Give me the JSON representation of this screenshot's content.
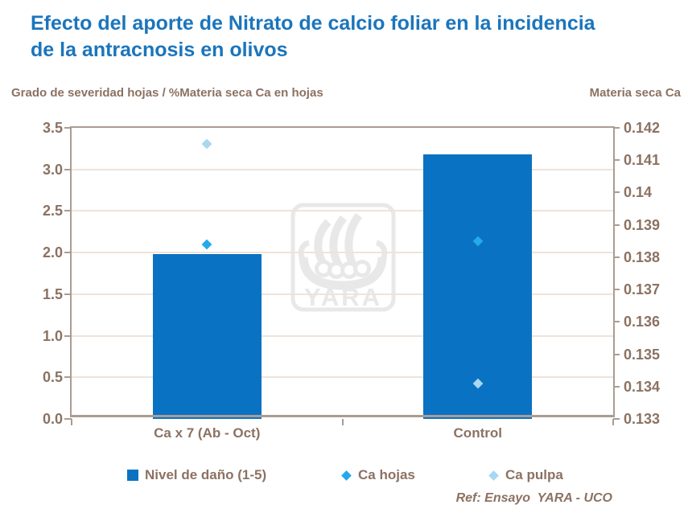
{
  "title": {
    "line1": "Efecto del aporte de Nitrato de calcio foliar en la incidencia",
    "line2": "de la antracnosis en olivos"
  },
  "axis_headers": {
    "left": "Grado de severidad hojas / %Materia seca Ca en hojas",
    "right": "Materia seca Ca"
  },
  "footer": {
    "ref": "Ref: Ensayo  YARA - UCO"
  },
  "watermark": {
    "text": "YARA",
    "icon": "yara-viking-ship-logo"
  },
  "legend": [
    {
      "label": "Nivel de daño (1-5)",
      "marker": "square",
      "color": "#0A72C2"
    },
    {
      "label": "Ca hojas",
      "marker": "diamond",
      "color": "#25A9E9"
    },
    {
      "label": "Ca pulpa",
      "marker": "diamond",
      "color": "#A8D7F2"
    }
  ],
  "colors": {
    "title": "#1B75BC",
    "text_brown": "#8B7262",
    "bar_blue": "#0A72C2",
    "ca_hojas_blue": "#25A9E9",
    "ca_pulpa_blue": "#A8D7F2",
    "gridline": "#EFE3DA",
    "plot_border": "#AB9C91",
    "watermark_gray": "#E8E8E8"
  },
  "chart_data": {
    "type": "bar",
    "subtype": "combo-bar-scatter-two-axes",
    "title": "Efecto del aporte de Nitrato de calcio foliar en la incidencia de la antracnosis en olivos",
    "categories": [
      "Ca x 7 (Ab - Oct)",
      "Control"
    ],
    "series": [
      {
        "name": "Nivel de daño (1-5)",
        "type": "bar",
        "axis": "left",
        "values": [
          1.98,
          3.18
        ],
        "color": "#0A72C2",
        "marker": "square"
      },
      {
        "name": "Ca hojas",
        "type": "scatter",
        "axis": "right",
        "values": [
          0.1384,
          0.1385
        ],
        "color": "#25A9E9",
        "marker": "diamond"
      },
      {
        "name": "Ca pulpa",
        "type": "scatter",
        "axis": "right",
        "values": [
          0.1415,
          0.1341
        ],
        "color": "#A8D7F2",
        "marker": "diamond"
      }
    ],
    "left_axis": {
      "title": "Grado de severidad hojas / %Materia seca Ca en hojas",
      "min": 0,
      "max": 3.5,
      "tick_step": 0.5,
      "ticks": [
        "3.5",
        "3.0",
        "2.5",
        "2.0",
        "1.5",
        "1.0",
        "0.5",
        "0.0"
      ]
    },
    "right_axis": {
      "title": "Materia seca Ca",
      "min": 0.133,
      "max": 0.142,
      "tick_step": 0.001,
      "ticks": [
        "0.142",
        "0.141",
        "0.14",
        "0.139",
        "0.138",
        "0.137",
        "0.136",
        "0.135",
        "0.134",
        "0.133"
      ]
    },
    "grid": true,
    "legend_position": "bottom",
    "footnote": "Ref: Ensayo  YARA - UCO"
  }
}
